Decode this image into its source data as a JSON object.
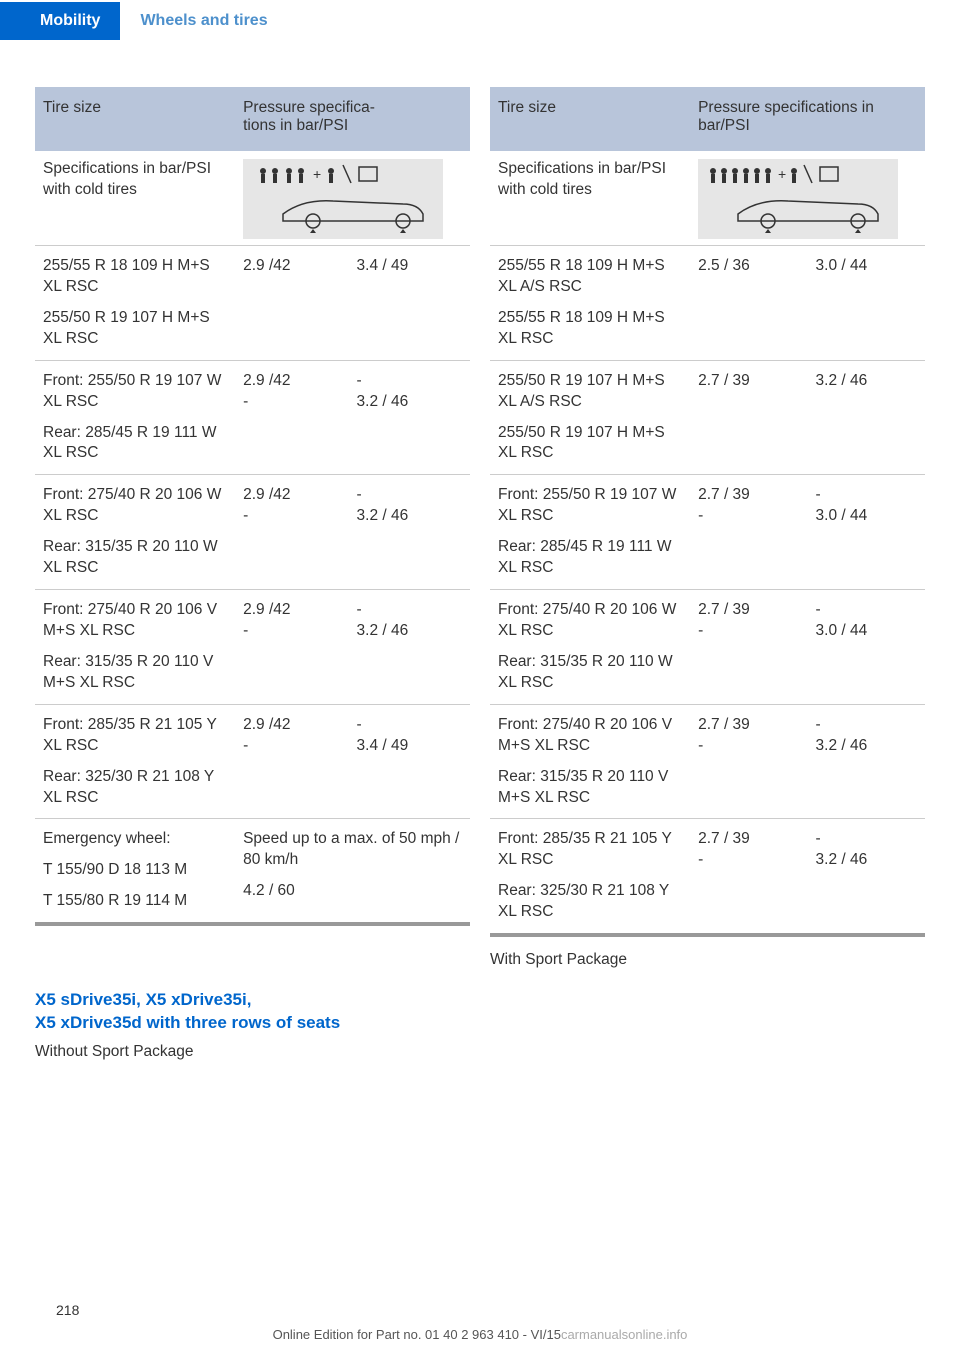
{
  "header": {
    "mobility": "Mobility",
    "wheels": "Wheels and tires"
  },
  "colors": {
    "blue": "#0066cc",
    "header_bg": "#b8c5da",
    "svg_bg": "#e6e6e6"
  },
  "left": {
    "th1": "Tire size",
    "th2": "Pressure specifica‐\ntions in bar/PSI",
    "spec_label": "Specifications in bar/PSI with cold tires",
    "rows": [
      {
        "size": "255/55 R 18 109 H M+S XL RSC",
        "size2": "255/50 R 19 107 H M+S XL RSC",
        "c1": "2.9 /42",
        "c2": "3.4 / 49"
      },
      {
        "size": "Front: 255/50 R 19 107 W XL RSC",
        "size2": "Rear: 285/45 R 19 111 W XL RSC",
        "c1": "2.9 /42",
        "c1b": "-",
        "c2": "-",
        "c2b": "3.2 / 46"
      },
      {
        "size": "Front: 275/40 R 20 106 W XL RSC",
        "size2": "Rear:\n315/35 R 20 110 W XL RSC",
        "c1": "2.9 /42",
        "c1b": "-",
        "c2": "-",
        "c2b": "3.2 / 46"
      },
      {
        "size": "Front: 275/40 R 20 106 V M+S XL RSC",
        "size2": "Rear: 315/35 R 20 110 V M+S XL RSC",
        "c1": "2.9 /42",
        "c1b": "-",
        "c2": "-",
        "c2b": "3.2 / 46"
      },
      {
        "size": "Front: 285/35 R 21 105 Y XL RSC",
        "size2": "Rear: 325/30 R 21 108 Y XL RSC",
        "c1": "2.9 /42",
        "c1b": "-",
        "c2": "-",
        "c2b": "3.4 / 49"
      }
    ],
    "emerg": {
      "label": "Emergency wheel:",
      "s1": "T 155/90 D 18 113 M",
      "s2": "T 155/80 R 19 114 M",
      "note": "Speed up to a max. of 50 mph / 80 km/h",
      "val": "4.2 / 60"
    }
  },
  "right": {
    "th1": "Tire size",
    "th2": "Pressure specifications in bar/PSI",
    "spec_label": "Specifications in bar/PSI with cold tires",
    "rows": [
      {
        "size": "255/55 R 18 109 H M+S XL A/S RSC",
        "size2": "255/55 R 18 109 H M+S XL RSC",
        "c1": "2.5 / 36",
        "c2": "3.0 / 44"
      },
      {
        "size": "255/50 R 19 107 H M+S XL A/S RSC",
        "size2": "255/50 R 19 107 H M+S XL RSC",
        "c1": "2.7 / 39",
        "c2": "3.2 / 46"
      },
      {
        "size": "Front: 255/50 R 19 107 W XL RSC",
        "size2": "Rear: 285/45 R 19 111 W XL RSC",
        "c1": "2.7 / 39",
        "c1b": "-",
        "c2": "-",
        "c2b": "3.0 / 44"
      },
      {
        "size": "Front: 275/40 R 20 106 W XL RSC",
        "size2": "Rear: 315/35 R 20 110 W XL RSC",
        "c1": "2.7 / 39",
        "c1b": "-",
        "c2": "-",
        "c2b": "3.0 / 44"
      },
      {
        "size": "Front: 275/40 R 20 106 V M+S XL RSC",
        "size2": "Rear: 315/35 R 20 110 V M+S XL RSC",
        "c1": "2.7 / 39",
        "c1b": "-",
        "c2": "-",
        "c2b": "3.2 / 46"
      },
      {
        "size": "Front: 285/35 R 21 105 Y XL RSC",
        "size2": "Rear: 325/30 R 21 108 Y XL RSC",
        "c1": "2.7 / 39",
        "c1b": "-",
        "c2": "-",
        "c2b": "3.2 / 46"
      }
    ],
    "sport": "With Sport Package"
  },
  "section": {
    "title": "X5 sDrive35i, X5 xDrive35i,\nX5 xDrive35d with three rows of seats",
    "sub": "Without Sport Package"
  },
  "page": "218",
  "footer": {
    "a": "Online Edition for Part no. 01 40 2 963 410 - VI/15",
    "b": "carmanualsonline.info"
  }
}
